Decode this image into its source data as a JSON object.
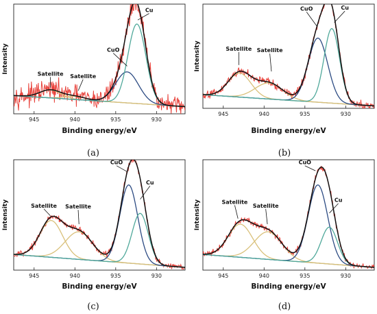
{
  "colors": {
    "raw": "#e8413a",
    "fit": "#111111",
    "cu": "#4fa89a",
    "cuo": "#2b4a82",
    "satellite": "#d9c07a",
    "background": "#74b4e0"
  },
  "chart_data": [
    {
      "type": "line",
      "panel_label": "(a)",
      "xlabel": "Binding energy/eV",
      "ylabel": "Intensity",
      "xlim": [
        947.5,
        926.5
      ],
      "x_reversed": true,
      "xticks": [
        "945",
        "940",
        "935",
        "930"
      ],
      "noise": 0.075,
      "baseline": {
        "left": 0.05,
        "right": -0.09
      },
      "components": [
        {
          "name": "Cu",
          "type": "Cu",
          "center": 932.4,
          "width": 1.1,
          "height": 1.0
        },
        {
          "name": "CuO",
          "type": "CuO",
          "center": 933.6,
          "width": 1.4,
          "height": 0.39
        },
        {
          "name": "Satellite",
          "type": "satellite",
          "center": 943.0,
          "width": 1.3,
          "height": 0.1
        },
        {
          "name": "Satellite",
          "type": "satellite",
          "center": 940.0,
          "width": 1.3,
          "height": 0.04
        }
      ],
      "annotations": [
        {
          "text": "Cu",
          "x": 930.9,
          "y": 1.1,
          "tx": 932.3,
          "ty": 1.0
        },
        {
          "text": "CuO",
          "x": 935.3,
          "y": 0.6,
          "tx": 933.6,
          "ty": 0.42
        },
        {
          "text": "Satellite",
          "x": 943.0,
          "y": 0.3,
          "tx": 943.0,
          "ty": 0.15
        },
        {
          "text": "Satellite",
          "x": 939.0,
          "y": 0.27,
          "tx": 939.6,
          "ty": 0.11
        }
      ]
    },
    {
      "type": "line",
      "panel_label": "(b)",
      "xlabel": "Binding energy/eV",
      "ylabel": "Intensity",
      "xlim": [
        947.5,
        926.5
      ],
      "x_reversed": true,
      "xticks": [
        "945",
        "940",
        "935",
        "930"
      ],
      "noise": 0.03,
      "baseline": {
        "left": 0.05,
        "right": -0.09
      },
      "components": [
        {
          "name": "Cu",
          "type": "Cu",
          "center": 931.7,
          "width": 0.95,
          "height": 0.93
        },
        {
          "name": "CuO",
          "type": "CuO",
          "center": 933.4,
          "width": 1.2,
          "height": 0.8
        },
        {
          "name": "Satellite",
          "type": "satellite",
          "center": 943.0,
          "width": 1.4,
          "height": 0.3
        },
        {
          "name": "Satellite",
          "type": "satellite",
          "center": 939.4,
          "width": 1.7,
          "height": 0.2
        }
      ],
      "annotations": [
        {
          "text": "CuO",
          "x": 934.8,
          "y": 1.1,
          "tx": 933.5,
          "ty": 0.9
        },
        {
          "text": "Cu",
          "x": 930.1,
          "y": 1.11,
          "tx": 931.4,
          "ty": 0.95
        },
        {
          "text": "Satellite",
          "x": 943.1,
          "y": 0.6,
          "tx": 943.1,
          "ty": 0.42
        },
        {
          "text": "Satellite",
          "x": 939.3,
          "y": 0.58,
          "tx": 939.1,
          "ty": 0.34
        }
      ]
    },
    {
      "type": "line",
      "panel_label": "(c)",
      "xlabel": "Binding energy/eV",
      "ylabel": "Intensity",
      "xlim": [
        947.5,
        926.5
      ],
      "x_reversed": true,
      "xticks": [
        "945",
        "940",
        "935",
        "930"
      ],
      "noise": 0.02,
      "baseline": {
        "left": 0.05,
        "right": -0.09
      },
      "components": [
        {
          "name": "Cu",
          "type": "Cu",
          "center": 932.0,
          "width": 1.0,
          "height": 0.55
        },
        {
          "name": "CuO",
          "type": "CuO",
          "center": 933.4,
          "width": 1.1,
          "height": 0.85
        },
        {
          "name": "Satellite",
          "type": "satellite",
          "center": 942.9,
          "width": 1.4,
          "height": 0.4
        },
        {
          "name": "Satellite",
          "type": "satellite",
          "center": 939.5,
          "width": 1.7,
          "height": 0.3
        }
      ],
      "annotations": [
        {
          "text": "CuO",
          "x": 934.9,
          "y": 1.03,
          "tx": 933.6,
          "ty": 0.95
        },
        {
          "text": "Cu",
          "x": 930.8,
          "y": 0.81,
          "tx": 932.0,
          "ty": 0.65
        },
        {
          "text": "Satellite",
          "x": 943.8,
          "y": 0.56,
          "tx": 943.0,
          "ty": 0.47
        },
        {
          "text": "Satellite",
          "x": 939.6,
          "y": 0.55,
          "tx": 939.5,
          "ty": 0.38
        }
      ]
    },
    {
      "type": "line",
      "panel_label": "(d)",
      "xlabel": "Binding energy/eV",
      "ylabel": "Intensity",
      "xlim": [
        947.5,
        926.5
      ],
      "x_reversed": true,
      "xticks": [
        "945",
        "940",
        "935",
        "930"
      ],
      "noise": 0.02,
      "baseline": {
        "left": 0.05,
        "right": -0.09
      },
      "components": [
        {
          "name": "Cu",
          "type": "Cu",
          "center": 932.0,
          "width": 1.0,
          "height": 0.4
        },
        {
          "name": "CuO",
          "type": "CuO",
          "center": 933.4,
          "width": 1.2,
          "height": 0.85
        },
        {
          "name": "Satellite",
          "type": "satellite",
          "center": 942.9,
          "width": 1.5,
          "height": 0.36
        },
        {
          "name": "Satellite",
          "type": "satellite",
          "center": 939.5,
          "width": 1.7,
          "height": 0.3
        }
      ],
      "annotations": [
        {
          "text": "CuO",
          "x": 935.0,
          "y": 1.03,
          "tx": 933.7,
          "ty": 0.96
        },
        {
          "text": "Cu",
          "x": 930.9,
          "y": 0.62,
          "tx": 932.0,
          "ty": 0.5
        },
        {
          "text": "Satellite",
          "x": 943.6,
          "y": 0.6,
          "tx": 943.2,
          "ty": 0.44
        },
        {
          "text": "Satellite",
          "x": 939.8,
          "y": 0.56,
          "tx": 939.6,
          "ty": 0.38
        }
      ]
    }
  ]
}
